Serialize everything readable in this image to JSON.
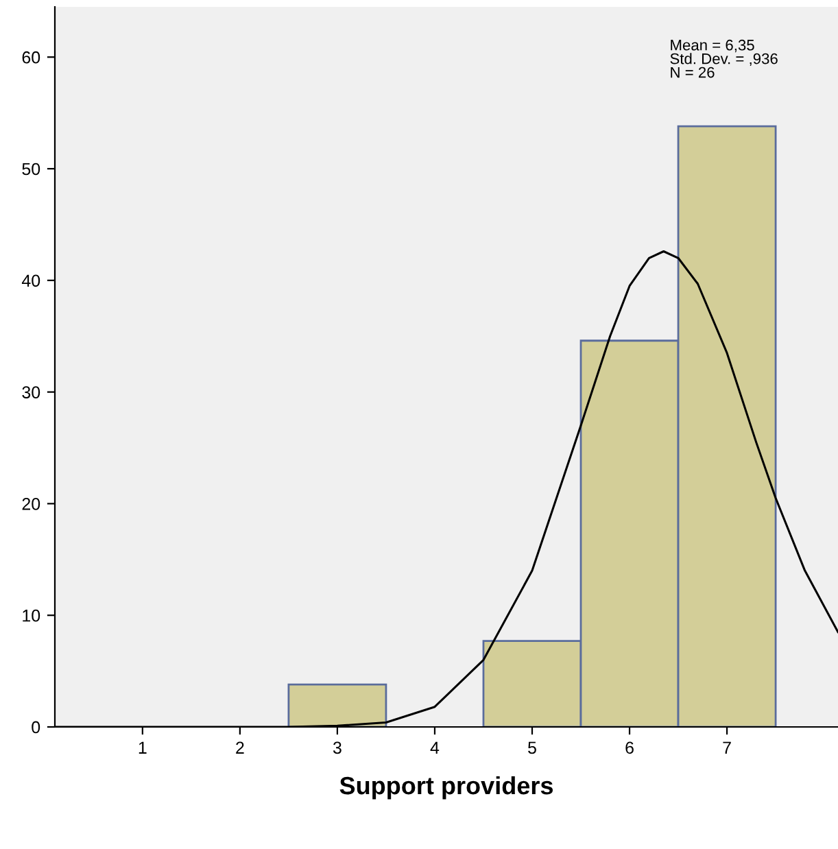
{
  "chart_data": {
    "type": "histogram",
    "xlabel": "Support providers",
    "bins": [
      2.5,
      3.5,
      4.5,
      5.5,
      6.5,
      7.5
    ],
    "values": [
      3.8,
      0,
      7.7,
      34.6,
      53.8
    ],
    "color": "#d3ce98",
    "series": [
      {
        "type": "line",
        "color": "#000000",
        "x": [
          0.1,
          2.5,
          3.0,
          3.5,
          4.0,
          4.5,
          5.0,
          5.5,
          5.8,
          6.0,
          6.2,
          6.35,
          6.5,
          6.7,
          7.0,
          7.3,
          7.5,
          7.8,
          8.14
        ],
        "values": [
          0,
          0,
          0.1,
          0.4,
          1.8,
          6.0,
          14.0,
          27.0,
          35.0,
          39.5,
          42.0,
          42.6,
          42.0,
          39.7,
          33.5,
          25.5,
          20.5,
          14.0,
          8.5
        ]
      }
    ],
    "xlim": [
      0.1,
      8.14
    ],
    "ylim": [
      0,
      64.5
    ],
    "xticks": [
      1,
      2,
      3,
      4,
      5,
      6,
      7
    ],
    "yticks": [
      0,
      10,
      20,
      30,
      40,
      50,
      60
    ],
    "grid": false,
    "legend": false,
    "marker": "none",
    "line_style": "solid",
    "annotations": [
      "Mean = 6,35\nStd. Dev. = ,936\nN = 26"
    ]
  }
}
